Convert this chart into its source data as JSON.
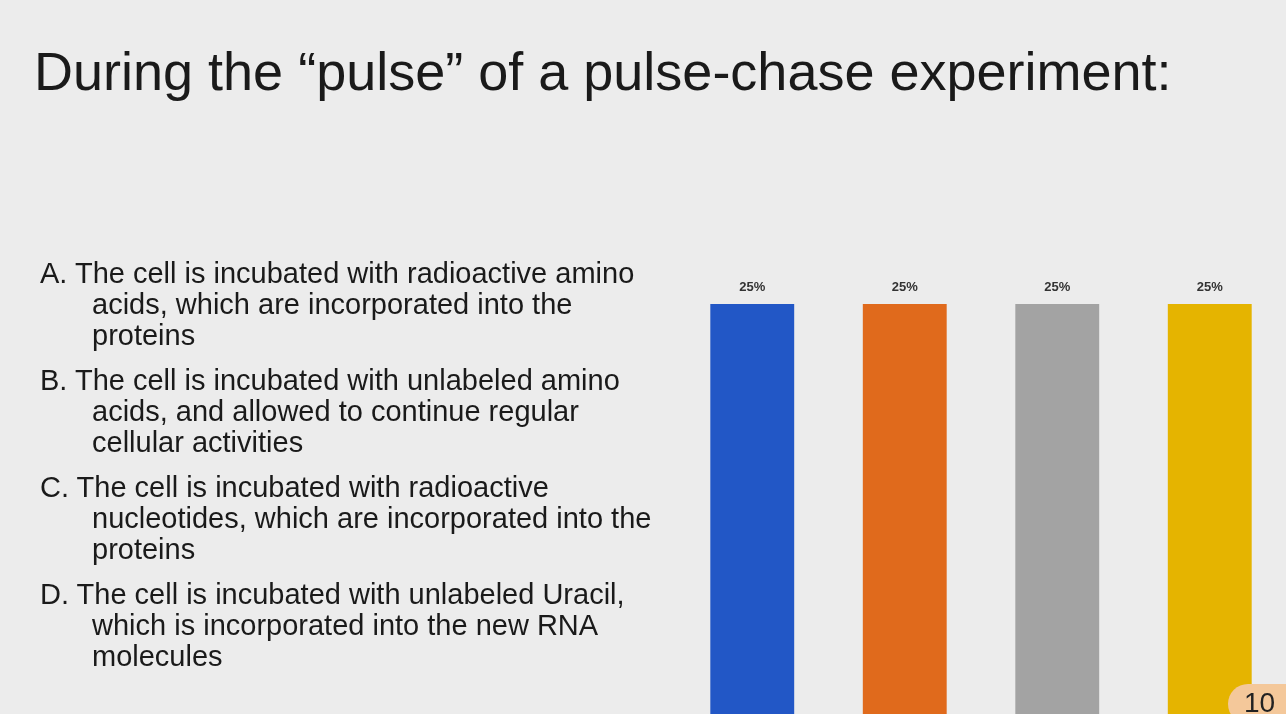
{
  "chart_data": {
    "type": "bar",
    "title": "During the “pulse” of a pulse-chase experiment:",
    "categories": [
      null,
      null,
      null,
      null
    ],
    "values": [
      25,
      25,
      25,
      25
    ],
    "colors": [
      "#2257c6",
      "#e06a1c",
      "#a3a3a3",
      "#e5b400"
    ],
    "value_labels": [
      "25%",
      "25%",
      "25%",
      "25%"
    ],
    "annotations": [
      "A. The cell is incubated with radioactive amino acids, which are incorporated into the proteins",
      "B. The cell is incubated with unlabeled amino acids, and allowed to continue regular cellular activities",
      "C. The cell is incubated with radioactive nucleotides, which are incorporated into the proteins",
      "D. The cell is incubated with unlabeled Uracil, which is incorporated into the new RNA molecules",
      "10"
    ],
    "grid": false,
    "legend": false
  }
}
